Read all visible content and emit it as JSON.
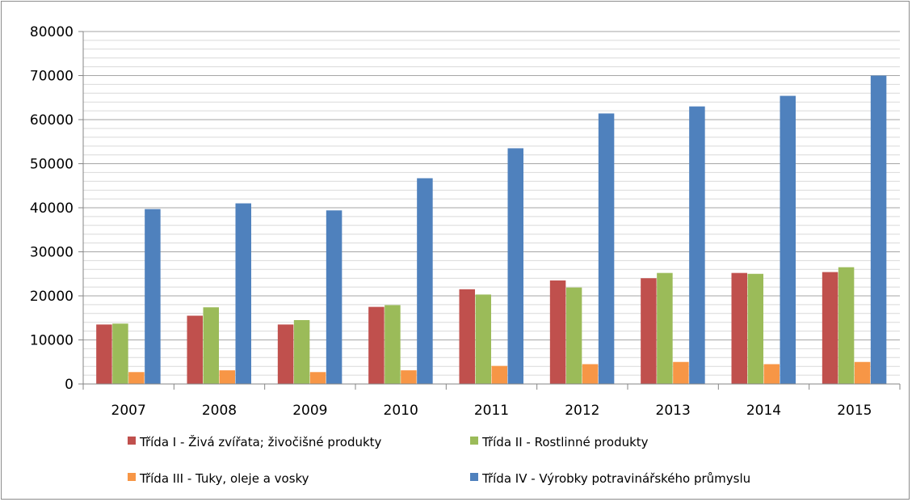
{
  "chart_data": {
    "type": "bar",
    "title": "",
    "xlabel": "",
    "ylabel": "",
    "ylim": [
      0,
      80000
    ],
    "yticks": [
      0,
      10000,
      20000,
      30000,
      40000,
      50000,
      60000,
      70000,
      80000
    ],
    "ytick_labels": [
      "0",
      "10000",
      "20000",
      "30000",
      "40000",
      "50000",
      "60000",
      "70000",
      "80000"
    ],
    "minor_grid_step": 2000,
    "grid": true,
    "legend_position": "bottom",
    "categories": [
      "2007",
      "2008",
      "2009",
      "2010",
      "2011",
      "2012",
      "2013",
      "2014",
      "2015"
    ],
    "series": [
      {
        "name": "Třída I - Živá zvířata; živočišné produkty",
        "color": "#c0504d",
        "values": [
          13500,
          15500,
          13500,
          17500,
          21500,
          23500,
          24000,
          25200,
          25400
        ]
      },
      {
        "name": "Třída II - Rostlinné produkty",
        "color": "#9bbb59",
        "values": [
          13700,
          17400,
          14500,
          17900,
          20300,
          21900,
          25200,
          25000,
          26500
        ]
      },
      {
        "name": "Třída III - Tuky, oleje a vosky",
        "color": "#f79646",
        "values": [
          2700,
          3100,
          2700,
          3100,
          4100,
          4500,
          5000,
          4500,
          5000
        ]
      },
      {
        "name": "Třída IV - Výrobky potravinářského průmyslu",
        "color": "#4f81bd",
        "values": [
          39700,
          41000,
          39400,
          46700,
          53500,
          61400,
          63000,
          65400,
          70000
        ]
      }
    ]
  }
}
